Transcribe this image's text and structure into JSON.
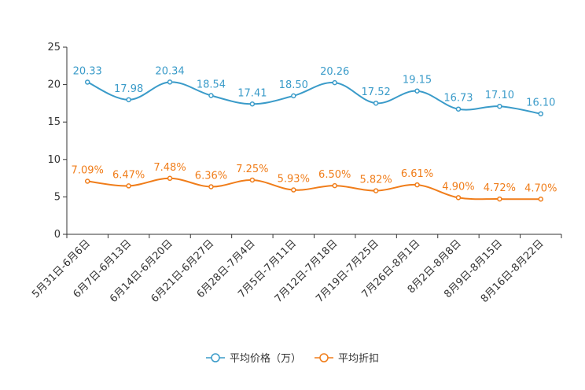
{
  "chart_data": {
    "type": "line",
    "title": "",
    "xlabel": "",
    "ylabel": "",
    "ylim": [
      0,
      25
    ],
    "yticks": [
      0,
      5,
      10,
      15,
      20,
      25
    ],
    "grid": false,
    "legend_position": "bottom-center",
    "categories": [
      "5月31日-6月6日",
      "6月7日-6月13日",
      "6月14日-6月20日",
      "6月21日-6月27日",
      "6月28日-7月4日",
      "7月5日-7月11日",
      "7月12日-7月18日",
      "7月19日-7月25日",
      "7月26日-8月1日",
      "8月2日-8月8日",
      "8月9日-8月15日",
      "8月16日-8月22日"
    ],
    "series": [
      {
        "name": "平均价格（万）",
        "color": "#3a9bc9",
        "values": [
          20.33,
          17.98,
          20.34,
          18.54,
          17.41,
          18.5,
          20.26,
          17.52,
          19.15,
          16.73,
          17.1,
          16.1
        ],
        "labels": [
          "20.33",
          "17.98",
          "20.34",
          "18.54",
          "17.41",
          "18.50",
          "20.26",
          "17.52",
          "19.15",
          "16.73",
          "17.10",
          "16.10"
        ]
      },
      {
        "name": "平均折扣",
        "color": "#f07d1a",
        "values": [
          7.09,
          6.47,
          7.48,
          6.36,
          7.25,
          5.93,
          6.5,
          5.82,
          6.61,
          4.9,
          4.72,
          4.7
        ],
        "labels": [
          "7.09%",
          "6.47%",
          "7.48%",
          "6.36%",
          "7.25%",
          "5.93%",
          "6.50%",
          "5.82%",
          "6.61%",
          "4.90%",
          "4.72%",
          "4.70%"
        ]
      }
    ]
  }
}
